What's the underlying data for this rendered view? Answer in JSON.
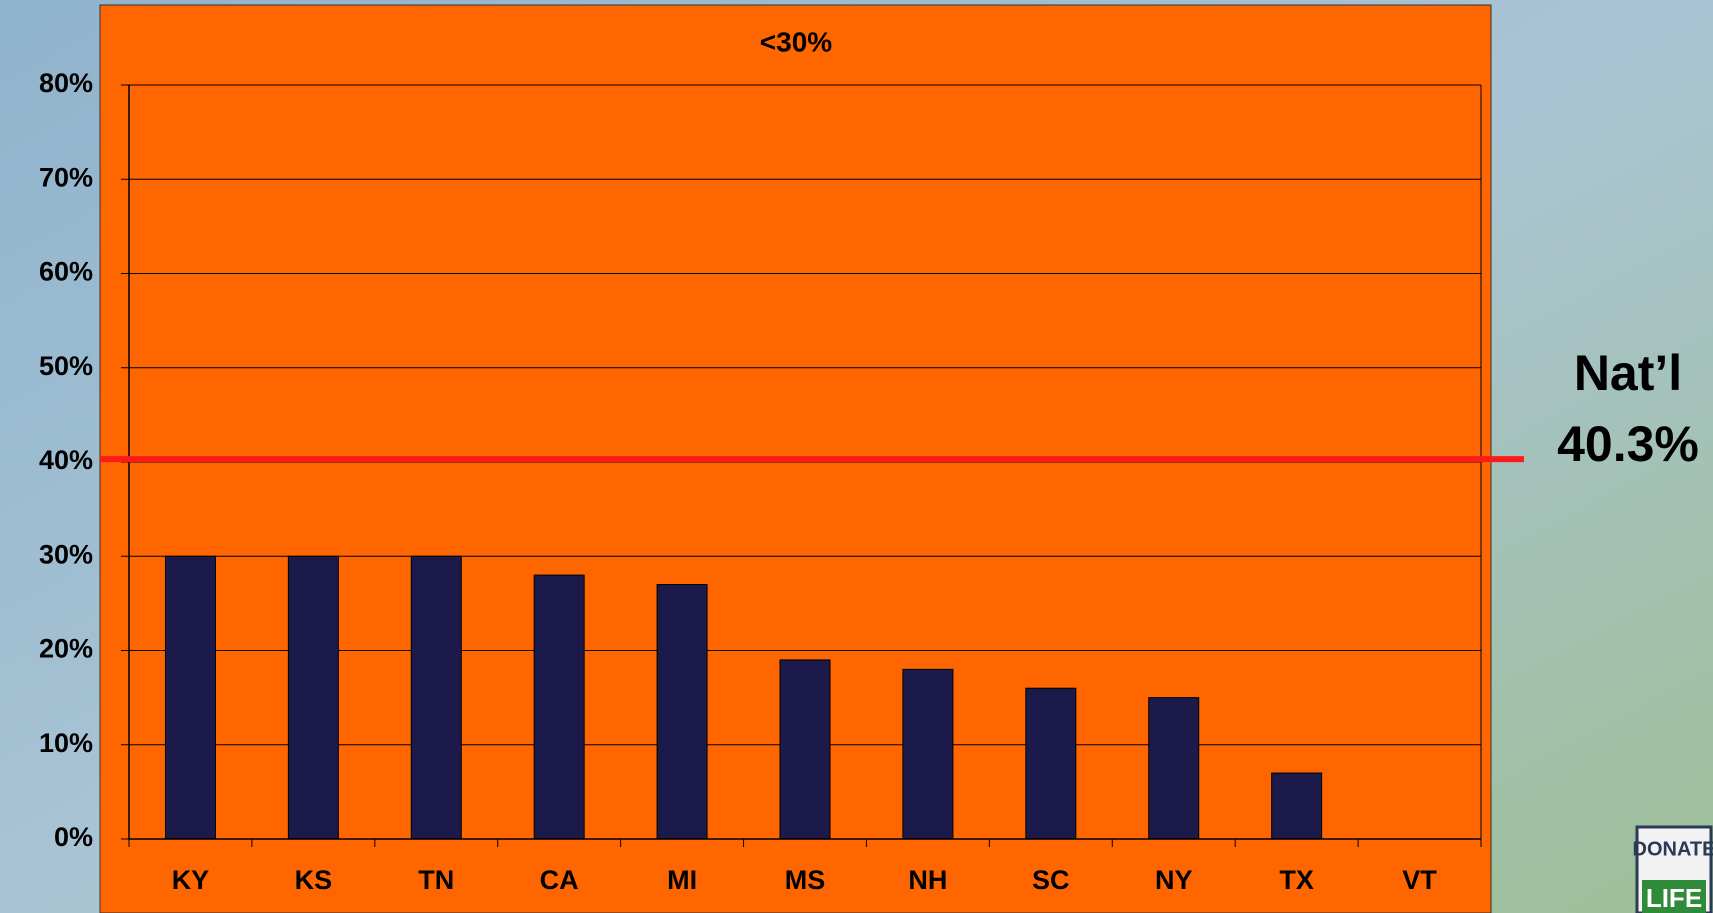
{
  "chart_data": {
    "type": "bar",
    "title": "<30%",
    "categories": [
      "KY",
      "KS",
      "TN",
      "CA",
      "MI",
      "MS",
      "NH",
      "SC",
      "NY",
      "TX",
      "VT"
    ],
    "values": [
      30,
      30,
      30,
      28,
      27,
      19,
      18,
      16,
      15,
      7,
      0
    ],
    "color": "#1b1a4a",
    "ylim": [
      0,
      80
    ],
    "yticks": [
      {
        "value": 0,
        "label": "0%"
      },
      {
        "value": 10,
        "label": "10%"
      },
      {
        "value": 20,
        "label": "20%"
      },
      {
        "value": 30,
        "label": "30%"
      },
      {
        "value": 40,
        "label": "40%"
      },
      {
        "value": 50,
        "label": "50%"
      },
      {
        "value": 60,
        "label": "60%"
      },
      {
        "value": 70,
        "label": "70%"
      },
      {
        "value": 80,
        "label": "80%"
      }
    ],
    "grid": true,
    "reference_line": {
      "name": "Nat’l",
      "value": 40.3,
      "label": "40.3%",
      "color": "#ff1a1a"
    }
  },
  "logo": {
    "top": "DONATE",
    "bottom": "LIFE"
  }
}
